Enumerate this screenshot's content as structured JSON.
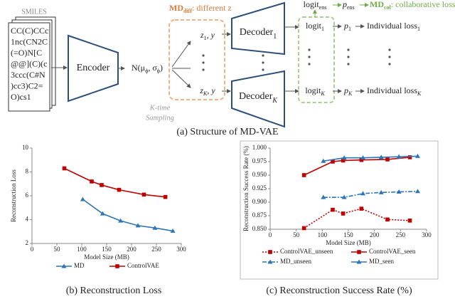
{
  "diagram": {
    "smiles_title": "SMILES",
    "smiles_lines": [
      "CC(C)CCc",
      "1nc(CN2C",
      "(=O)N[C",
      "@@](C)(c",
      "3ccc(C#N",
      ")cc3)C2=",
      "O)cs1"
    ],
    "encoder": "Encoder",
    "distribution": [
      "N(μ",
      "ϕ",
      ", σ",
      "ϕ",
      ")"
    ],
    "sampling": [
      "K-time",
      "Sampling"
    ],
    "md_diff": [
      "MD",
      "diff",
      ": different z"
    ],
    "z_1": [
      "z",
      "1",
      ", y"
    ],
    "z_K": [
      "z",
      "K",
      ", y"
    ],
    "decoder_1": [
      "Decoder",
      "1"
    ],
    "decoder_K": [
      "Decoder",
      "K"
    ],
    "logit_ens": [
      "logit",
      "ens"
    ],
    "p_ens": [
      "p",
      "ens"
    ],
    "md_col": [
      "MD",
      "col",
      ": collaborative loss"
    ],
    "logit_1": [
      "logit",
      "1"
    ],
    "p_1": [
      "p",
      "1"
    ],
    "loss_1": [
      "Individual loss",
      "1"
    ],
    "logit_K": [
      "logit",
      "K"
    ],
    "p_K": [
      "p",
      "K"
    ],
    "loss_K": [
      "Individual loss",
      "K"
    ],
    "caption": "(a) Structure of MD-VAE"
  },
  "chart_data": [
    {
      "type": "line",
      "caption": "(b) Reconstruction Loss",
      "x_label": "Model Size (MB)",
      "y_label": "Reconstruction Loss",
      "xlim": [
        0,
        300
      ],
      "xticks": [
        0,
        50,
        100,
        150,
        200,
        250,
        300
      ],
      "ylim": [
        2,
        10
      ],
      "yticks": [
        2,
        4,
        6,
        8,
        10
      ],
      "frame": false,
      "legend_columns": 2,
      "series": [
        {
          "name": "MD",
          "color": "#2e75b6",
          "dash": "solid",
          "marker": "triangle",
          "x": [
            102,
            142,
            178,
            213,
            247,
            283
          ],
          "values": [
            5.7,
            4.5,
            3.9,
            3.5,
            3.3,
            3.05
          ]
        },
        {
          "name": "ControlVAE",
          "color": "#c00000",
          "dash": "solid",
          "marker": "square",
          "x": [
            65,
            120,
            140,
            175,
            225,
            268
          ],
          "values": [
            8.3,
            7.2,
            6.9,
            6.5,
            6.1,
            5.9
          ]
        }
      ]
    },
    {
      "type": "line",
      "caption": "(c) Reconstruction Success Rate (%)",
      "x_label": "Model Size (MB)",
      "y_label": "Reconstruction Success Rate (%)",
      "xlim": [
        0,
        300
      ],
      "xticks": [
        0,
        50,
        100,
        150,
        200,
        250,
        300
      ],
      "ylim": [
        0.85,
        1.0
      ],
      "yticks": [
        {
          "value": 0.85,
          "label": "0.850"
        },
        {
          "value": 0.875,
          "label": "0.875"
        },
        {
          "value": 0.9,
          "label": "0.900"
        },
        {
          "value": 0.925,
          "label": "0.925"
        },
        {
          "value": 0.95,
          "label": "0.950"
        },
        {
          "value": 0.975,
          "label": "0.975"
        },
        {
          "value": 1.0,
          "label": "1.000"
        }
      ],
      "frame": true,
      "legend_columns": 2,
      "series": [
        {
          "name": "ControlVAE_unseen",
          "color": "#c00000",
          "dash": "dotted",
          "marker": "square",
          "x": [
            65,
            120,
            140,
            175,
            225,
            268
          ],
          "values": [
            0.852,
            0.886,
            0.879,
            0.888,
            0.868,
            0.866
          ]
        },
        {
          "name": "ControlVAE_seen",
          "color": "#c00000",
          "dash": "solid",
          "marker": "square",
          "x": [
            65,
            120,
            140,
            175,
            225,
            268
          ],
          "values": [
            0.95,
            0.975,
            0.977,
            0.978,
            0.979,
            0.983
          ]
        },
        {
          "name": "MD_unseen",
          "color": "#2e75b6",
          "dash": "dashdot",
          "marker": "triangle",
          "x": [
            102,
            142,
            178,
            213,
            247,
            283
          ],
          "values": [
            0.909,
            0.909,
            0.916,
            0.918,
            0.919,
            0.92
          ]
        },
        {
          "name": "MD_seen",
          "color": "#2e75b6",
          "dash": "solid",
          "marker": "triangle",
          "x": [
            102,
            142,
            178,
            213,
            247,
            283
          ],
          "values": [
            0.976,
            0.982,
            0.982,
            0.983,
            0.984,
            0.985
          ]
        }
      ]
    }
  ]
}
